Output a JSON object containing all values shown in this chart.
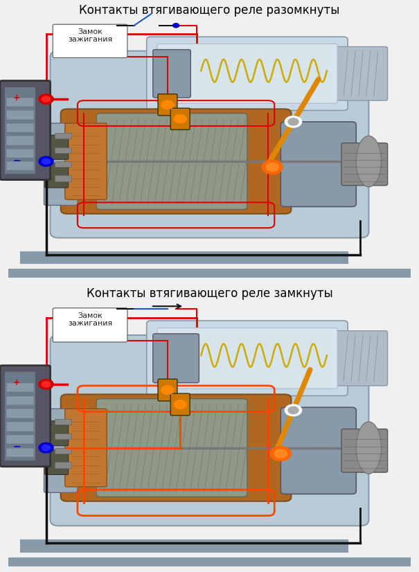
{
  "title1": "Контакты втягивающего реле разомкнуты",
  "title2": "Контакты втягивающего реле замкнуты",
  "bg_color": "#f0f0f0",
  "title_fontsize": 12,
  "title_color": "#000000",
  "fig_width": 6.05,
  "fig_height": 8.26,
  "dpi": 100,
  "wire_red": "#dd0000",
  "wire_red_bright": "#ff4400",
  "wire_blue": "#0000cc",
  "wire_black": "#111111",
  "lock_label": "Замок\nзажигания",
  "label_fontsize": 8,
  "spring_color": "#ccaa00",
  "lever_color": "#dd8800",
  "motor_housing_color": "#b8ccd8",
  "motor_housing_edge": "#8899aa",
  "solenoid_body_color": "#c0ccd8",
  "armature_color1": "#c87030",
  "armature_color2": "#888070",
  "copper_color": "#b87030",
  "gear_color": "#8a8a8a",
  "gear_edge": "#555555",
  "battery_body": "#787878",
  "battery_cell": "#909090",
  "battery_face": "#555555",
  "plus_color": "#cc0000",
  "minus_color": "#0000cc",
  "terminal_orange": "#cc6600",
  "pivot_color": "#ff6600",
  "shaft_color": "#777777",
  "brush_color": "#444444",
  "separator_color": "#8899aa",
  "separator_lw": 4,
  "switch_open_color": "#2255cc",
  "switch_closed_color": "#2255cc",
  "ground_bar_color": "#8899aa"
}
